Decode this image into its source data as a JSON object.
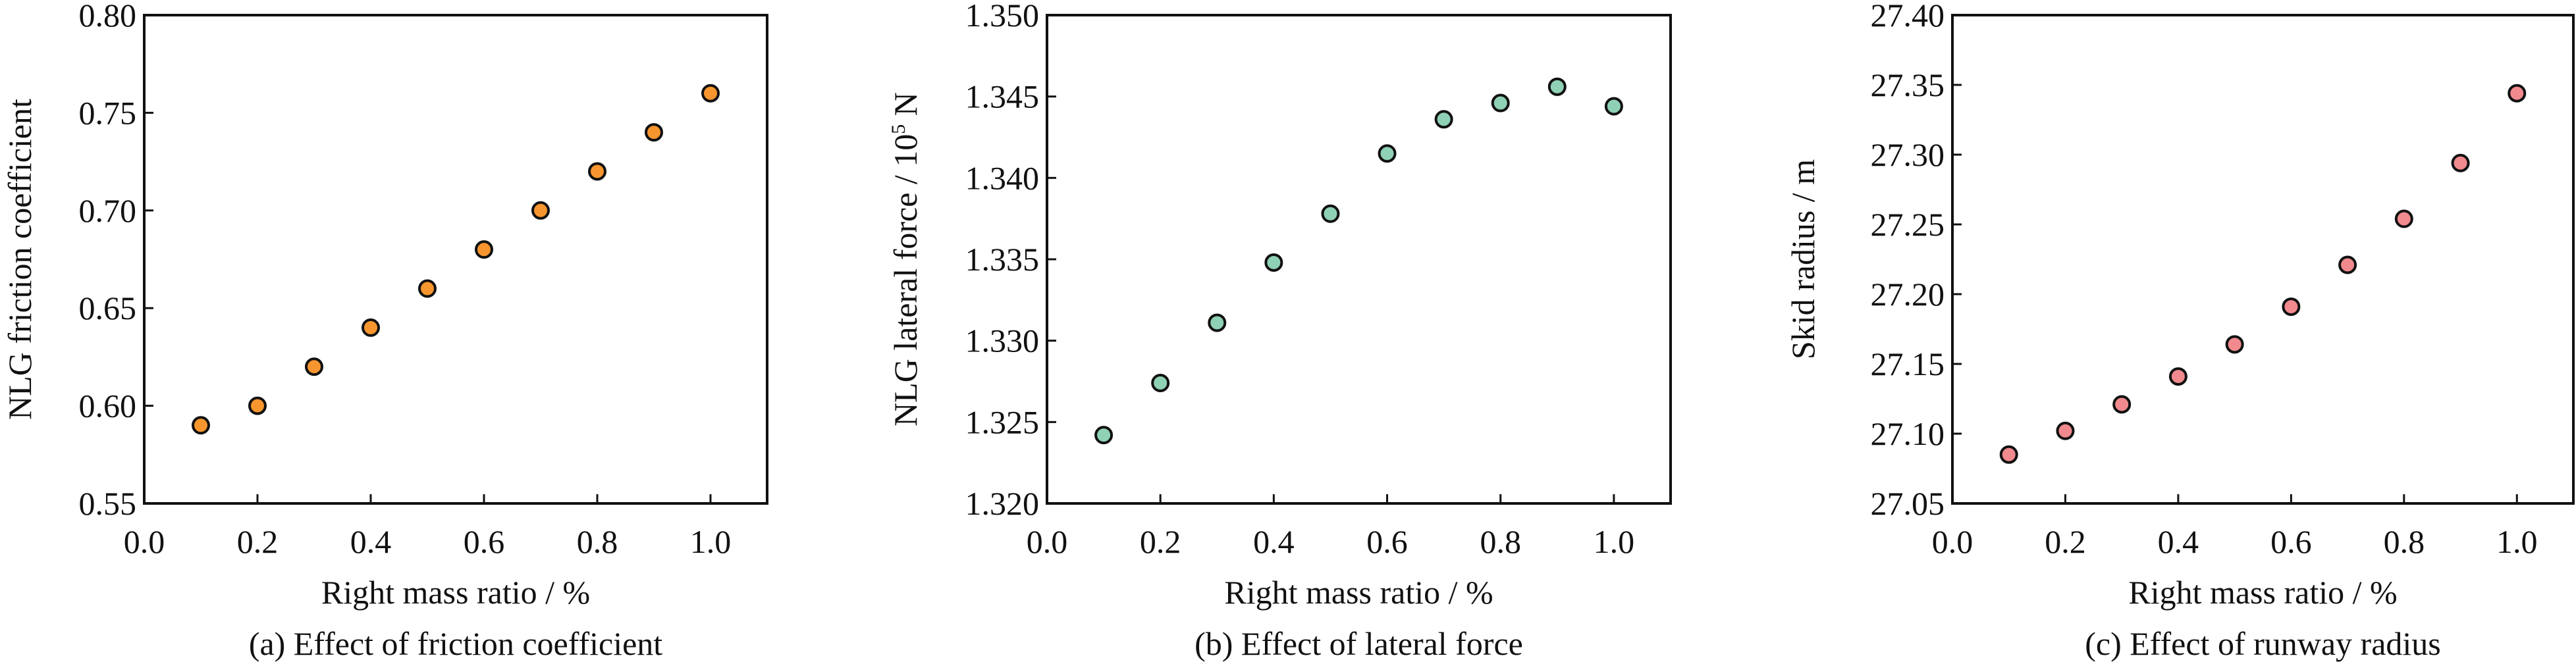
{
  "chart_data": [
    {
      "type": "scatter",
      "caption": "(a) Effect of friction coefficient",
      "xlabel": "Right mass ratio / %",
      "ylabel": "NLG friction coefficient",
      "x": [
        0.1,
        0.2,
        0.3,
        0.4,
        0.5,
        0.6,
        0.7,
        0.8,
        0.9,
        1.0
      ],
      "y": [
        0.59,
        0.6,
        0.62,
        0.64,
        0.66,
        0.68,
        0.7,
        0.72,
        0.74,
        0.76
      ],
      "xlim": [
        0.0,
        1.1
      ],
      "ylim": [
        0.55,
        0.8
      ],
      "xticks": [
        "0.0",
        "0.2",
        "0.4",
        "0.6",
        "0.8",
        "1.0"
      ],
      "yticks": [
        "0.55",
        "0.60",
        "0.65",
        "0.70",
        "0.75",
        "0.80"
      ],
      "marker_color": "#F7962E",
      "grid": false
    },
    {
      "type": "scatter",
      "caption": "(b) Effect of lateral force",
      "xlabel": "Right mass ratio / %",
      "ylabel": "NLG lateral force / 10",
      "ylabel_sup": "5",
      "ylabel_unit": " N",
      "x": [
        0.1,
        0.2,
        0.3,
        0.4,
        0.5,
        0.6,
        0.7,
        0.8,
        0.9,
        1.0
      ],
      "y": [
        1.3242,
        1.3274,
        1.3311,
        1.3348,
        1.3378,
        1.3415,
        1.3436,
        1.3446,
        1.3456,
        1.3444
      ],
      "xlim": [
        0.0,
        1.1
      ],
      "ylim": [
        1.32,
        1.35
      ],
      "xticks": [
        "0.0",
        "0.2",
        "0.4",
        "0.6",
        "0.8",
        "1.0"
      ],
      "yticks": [
        "1.320",
        "1.325",
        "1.330",
        "1.335",
        "1.340",
        "1.345",
        "1.350"
      ],
      "marker_color": "#8FD1B4",
      "grid": false
    },
    {
      "type": "scatter",
      "caption": "(c) Effect of runway radius",
      "xlabel": "Right mass ratio / %",
      "ylabel": "Skid radius / m",
      "x": [
        0.1,
        0.2,
        0.3,
        0.4,
        0.5,
        0.6,
        0.7,
        0.8,
        0.9,
        1.0
      ],
      "y": [
        27.085,
        27.102,
        27.121,
        27.141,
        27.164,
        27.191,
        27.221,
        27.254,
        27.294,
        27.344
      ],
      "xlim": [
        0.0,
        1.1
      ],
      "ylim": [
        27.05,
        27.4
      ],
      "xticks": [
        "0.0",
        "0.2",
        "0.4",
        "0.6",
        "0.8",
        "1.0"
      ],
      "yticks": [
        "27.05",
        "27.10",
        "27.15",
        "27.20",
        "27.25",
        "27.30",
        "27.35",
        "27.40"
      ],
      "marker_color": "#F08A8E",
      "grid": false
    }
  ]
}
